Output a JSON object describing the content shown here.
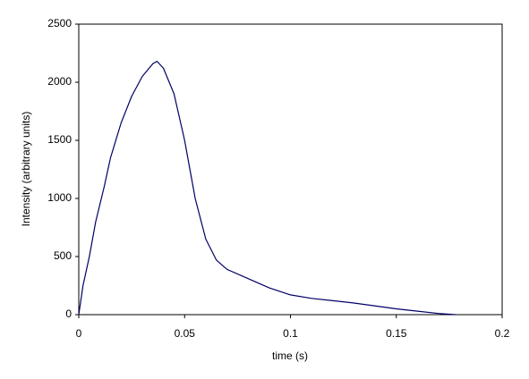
{
  "chart_data": {
    "type": "line",
    "x_label": "time (s)",
    "y_label": "Intensity (arbitrary units)",
    "x": [
      0,
      0.002,
      0.005,
      0.008,
      0.012,
      0.015,
      0.02,
      0.025,
      0.03,
      0.035,
      0.037,
      0.04,
      0.045,
      0.05,
      0.055,
      0.06,
      0.065,
      0.07,
      0.08,
      0.09,
      0.1,
      0.11,
      0.12,
      0.13,
      0.14,
      0.15,
      0.16,
      0.17,
      0.178
    ],
    "values": [
      0,
      250,
      500,
      800,
      1100,
      1350,
      1650,
      1880,
      2050,
      2160,
      2180,
      2120,
      1900,
      1500,
      1000,
      650,
      470,
      390,
      310,
      230,
      170,
      140,
      120,
      100,
      75,
      50,
      30,
      10,
      0
    ],
    "color": "#000066",
    "xlim": [
      0,
      0.2
    ],
    "xticks": [
      0,
      0.05,
      0.1,
      0.15,
      0.2
    ],
    "ylim": [
      0,
      2500
    ],
    "yticks": [
      0,
      500,
      1000,
      1500,
      2000,
      2500
    ]
  }
}
